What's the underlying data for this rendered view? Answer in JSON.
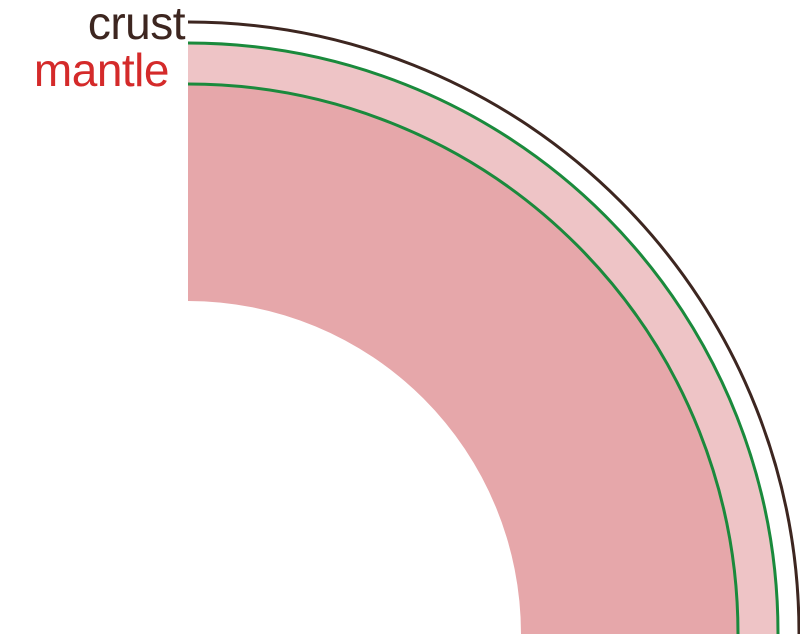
{
  "labels": {
    "crust": "crust",
    "mantle": "mantle"
  },
  "colors": {
    "crust_line": "#3d2620",
    "crust_text": "#3d2620",
    "mantle_text": "#d42a2a",
    "upper_mantle_fill": "#eec4c6",
    "lower_mantle_fill": "#e6a7aa",
    "boundary_line": "#1a8a3c"
  }
}
